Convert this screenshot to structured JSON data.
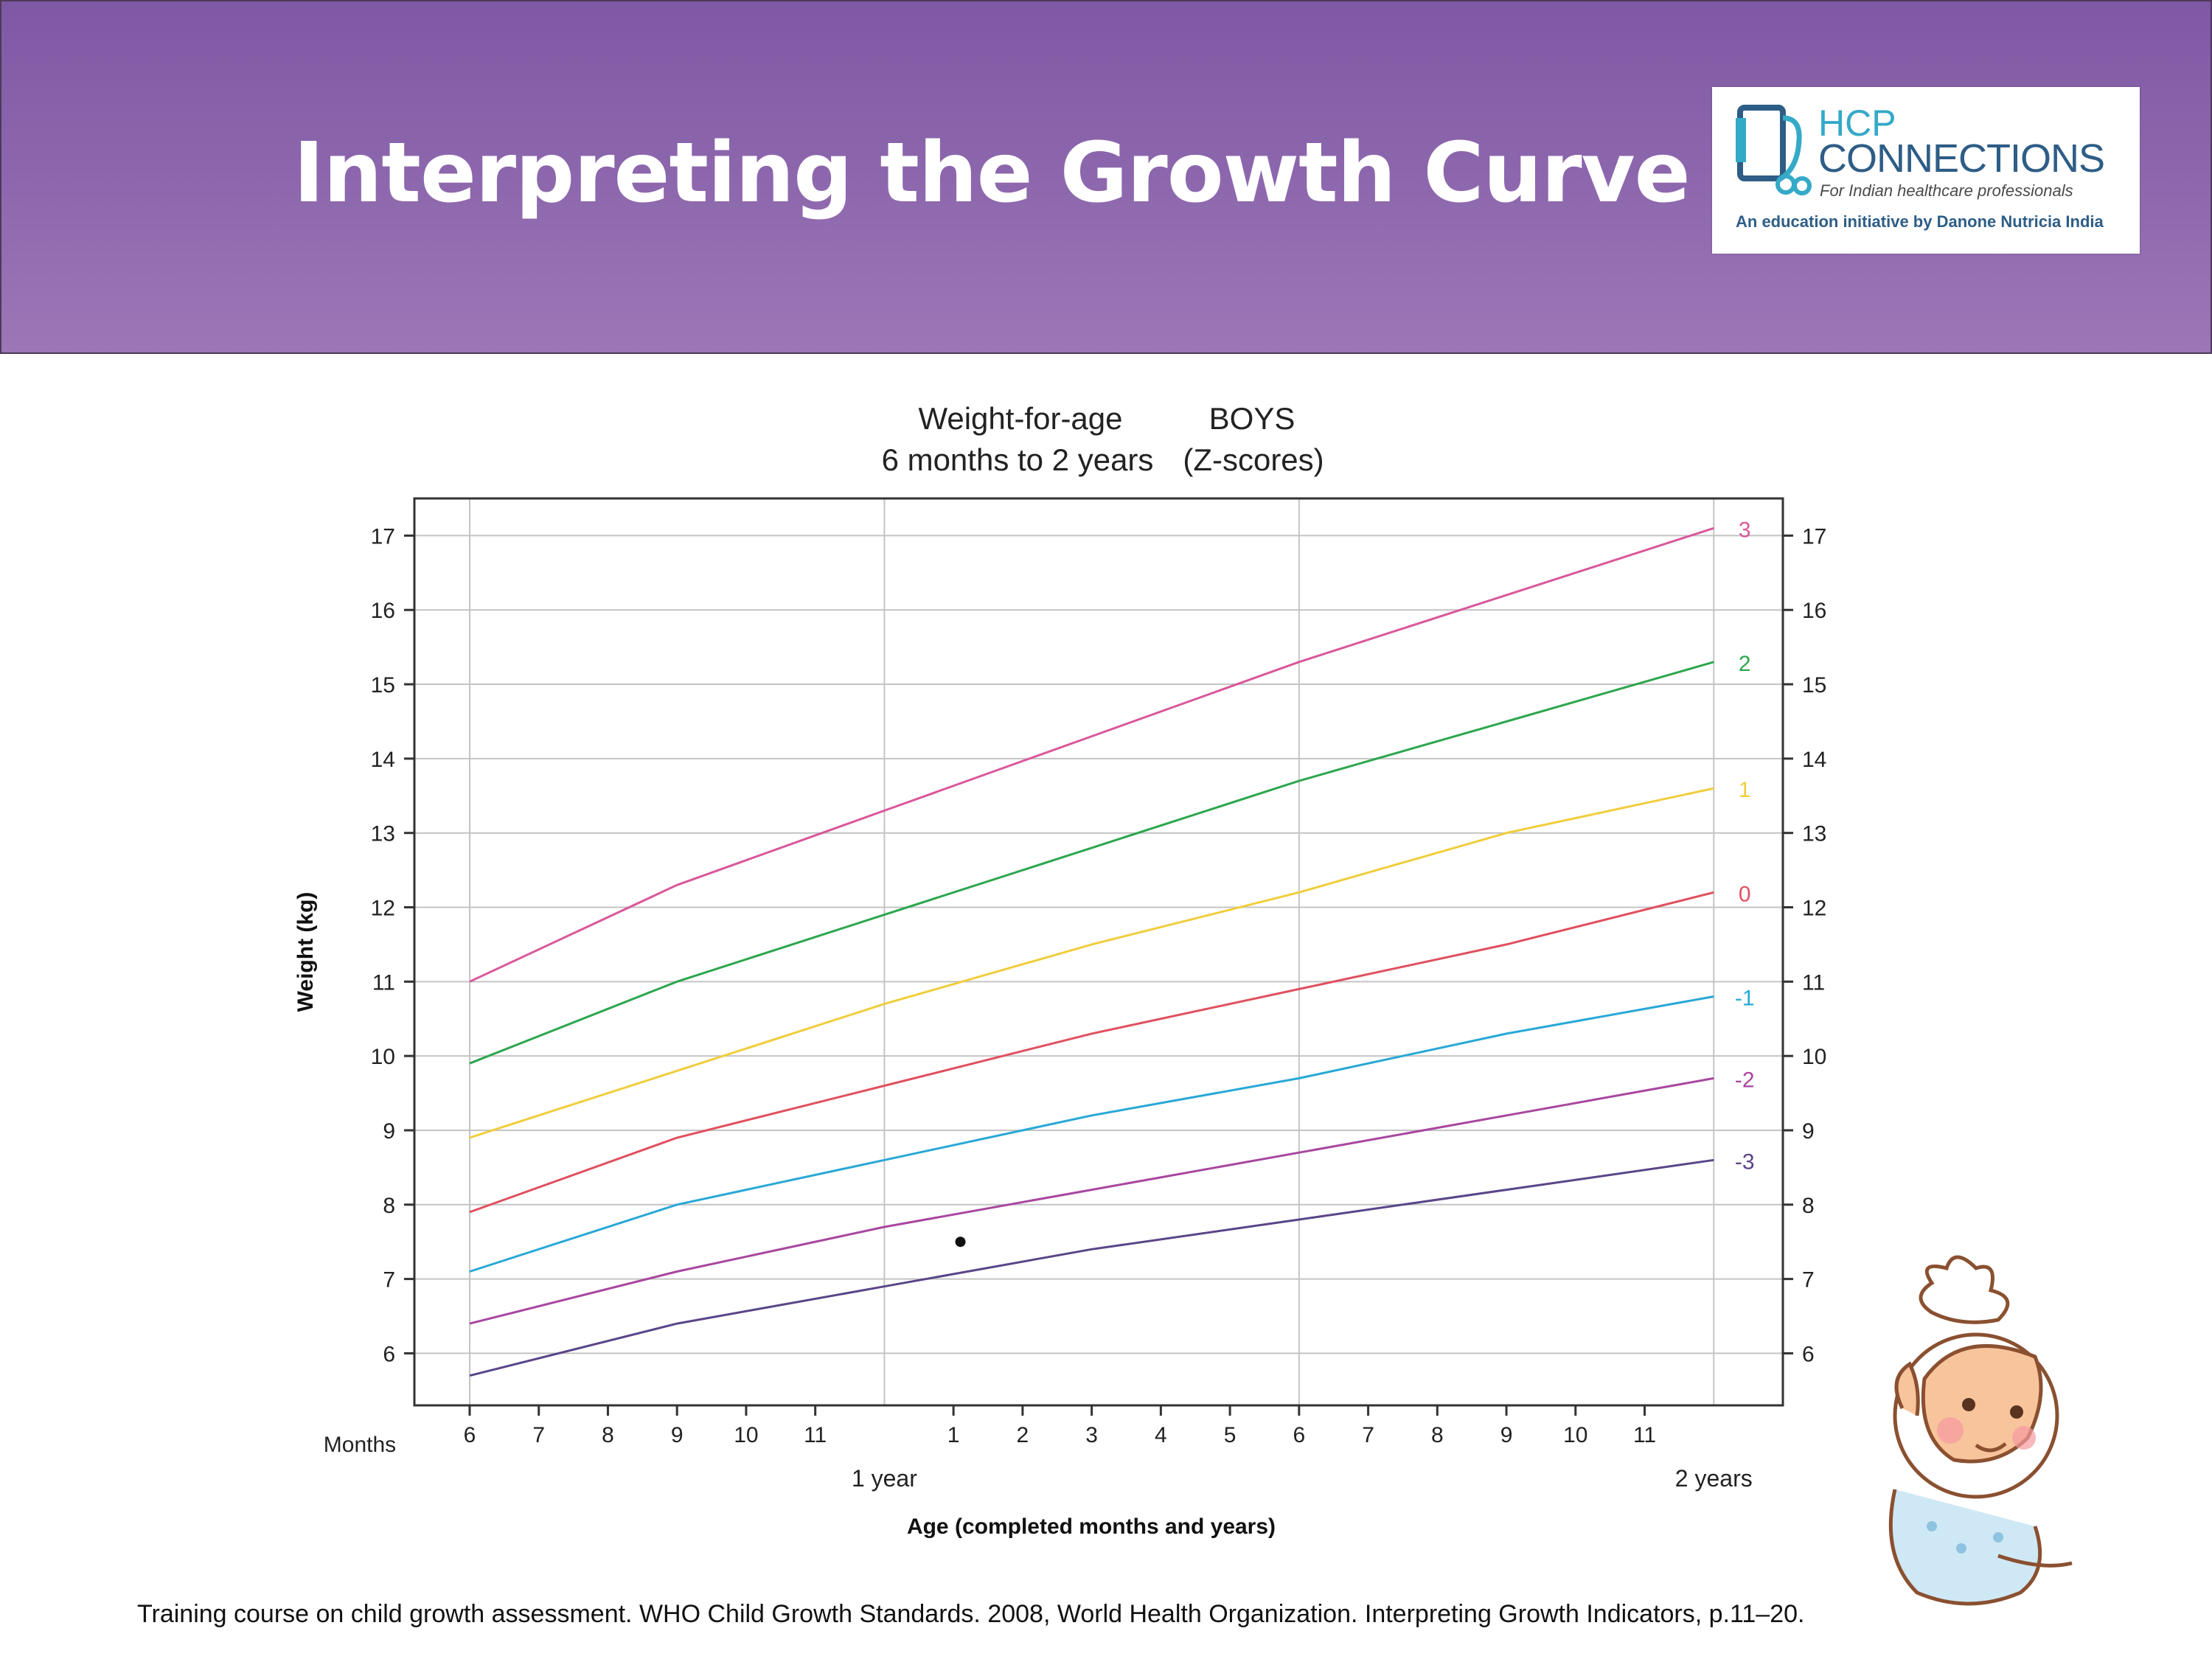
{
  "slide": {
    "title": "Interpreting the Growth Curve",
    "source": "Training course on child growth assessment. WHO Child Growth Standards. 2008, World Health Organization. Interpreting Growth Indicators, p.11–20."
  },
  "logo": {
    "line1": "HCP",
    "line2": "CONNECTIONS",
    "tagline": "For Indian healthcare professionals",
    "initiative": "An education initiative by Danone Nutricia India"
  },
  "colors": {
    "header_top": "#7e58a4",
    "header_bottom": "#9c76b6"
  },
  "chart_data": {
    "type": "line",
    "title_left": "Weight-for-age",
    "title_right": "BOYS",
    "subtitle_left": "6 months to 2 years",
    "subtitle_right": "(Z-scores)",
    "ylabel": "Weight (kg)",
    "xlabel": "Age (completed months and years)",
    "x_prefix_label": "Months",
    "ylim": [
      5.3,
      17.5
    ],
    "xlim": [
      5.2,
      25.0
    ],
    "yticks": [
      6,
      7,
      8,
      9,
      10,
      11,
      12,
      13,
      14,
      15,
      16,
      17
    ],
    "x_tick_positions": [
      6,
      7,
      8,
      9,
      10,
      11,
      13,
      14,
      15,
      16,
      17,
      18,
      19,
      20,
      21,
      22,
      23
    ],
    "x_tick_labels": [
      "6",
      "7",
      "8",
      "9",
      "10",
      "11",
      "1",
      "2",
      "3",
      "4",
      "5",
      "6",
      "7",
      "8",
      "9",
      "10",
      "11"
    ],
    "year_marks": [
      {
        "age": 12,
        "label": "1 year"
      },
      {
        "age": 24,
        "label": "2 years"
      }
    ],
    "vertical_gridlines": [
      6,
      12,
      18,
      24
    ],
    "grid": true,
    "x": [
      6,
      9,
      12,
      15,
      18,
      21,
      24
    ],
    "series": [
      {
        "name": "3",
        "color": "#d9589a",
        "values": [
          11.0,
          12.3,
          13.3,
          14.3,
          15.3,
          16.2,
          17.1
        ]
      },
      {
        "name": "2",
        "color": "#2ea64f",
        "values": [
          9.9,
          11.0,
          11.9,
          12.8,
          13.7,
          14.5,
          15.3
        ]
      },
      {
        "name": "1",
        "color": "#f0cd3c",
        "values": [
          8.9,
          9.8,
          10.7,
          11.5,
          12.2,
          13.0,
          13.6
        ]
      },
      {
        "name": "0",
        "color": "#e0505f",
        "values": [
          7.9,
          8.9,
          9.6,
          10.3,
          10.9,
          11.5,
          12.2
        ]
      },
      {
        "name": "-1",
        "color": "#28a8d6",
        "values": [
          7.1,
          8.0,
          8.6,
          9.2,
          9.7,
          10.3,
          10.8
        ]
      },
      {
        "name": "-2",
        "color": "#a8479e",
        "values": [
          6.4,
          7.1,
          7.7,
          8.2,
          8.7,
          9.2,
          9.7
        ]
      },
      {
        "name": "-3",
        "color": "#5a4588",
        "values": [
          5.7,
          6.4,
          6.9,
          7.4,
          7.8,
          8.2,
          8.6
        ]
      }
    ],
    "points": [
      {
        "x": 13.1,
        "y": 7.5,
        "color": "#111111"
      }
    ]
  }
}
